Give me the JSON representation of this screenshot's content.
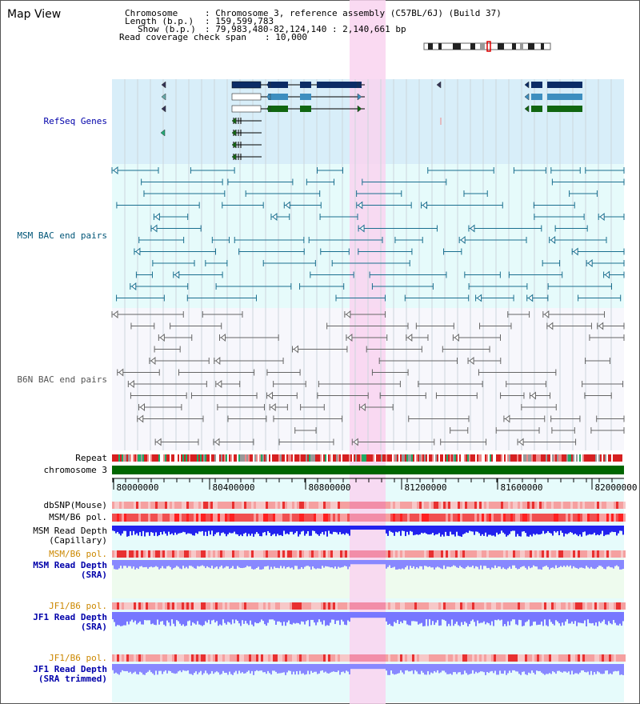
{
  "app": {
    "title": "Map View"
  },
  "info": {
    "chromosome_key": "Chromosome",
    "chromosome_val": ": Chromosome 3, reference assembly (C57BL/6J) (Build 37)",
    "length_key": "Length (b.p.)",
    "length_val": ": 159,599,783",
    "show_key": "Show (b.p.)",
    "show_val": ": 79,983,480-82,124,140 : 2,140,661 bp",
    "span_key": "Read coverage check span",
    "span_val": ": 10,000"
  },
  "tracks": {
    "refseq": "RefSeq Genes",
    "msm_bac": "MSM BAC end pairs",
    "b6n_bac": "B6N BAC end pairs",
    "repeat": "Repeat",
    "chromosome": "chromosome 3",
    "dbsnp": "dbSNP(Mouse)",
    "msm_b6_pol": "MSM/B6 pol.",
    "msm_read_depth_cap_1": "MSM Read Depth",
    "msm_read_depth_cap_2": "(Capillary)",
    "msm_b6_pol_sra": "MSM/B6 pol.",
    "msm_read_depth_sra_1": "MSM Read Depth",
    "msm_read_depth_sra_2": "(SRA)",
    "jf1_b6_pol_sra": "JF1/B6 pol.",
    "jf1_read_depth_sra_1": "JF1 Read Depth",
    "jf1_read_depth_sra_2": "(SRA)",
    "jf1_b6_pol_trim": "JF1/B6 pol.",
    "jf1_read_depth_trim_1": "JF1 Read Depth",
    "jf1_read_depth_trim_2": "(SRA trimmed)"
  },
  "axis": {
    "ticks": [
      "80000000",
      "80400000",
      "80800000",
      "81200000",
      "81600000",
      "82000000"
    ]
  },
  "colors": {
    "refseq_label": "#0000aa",
    "msm_label": "#005577",
    "b6n_label": "#555555",
    "orange_label": "#cc8800",
    "blue_label": "#0000aa",
    "highlight": "#f9d3f0",
    "refseq_bg": "#d8eef9",
    "msm_bg": "#e6fbfb",
    "b6n_bg": "#f7f7fc",
    "chromosome_bar": "#006600"
  }
}
